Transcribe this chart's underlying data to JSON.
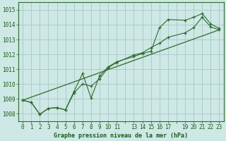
{
  "background_color": "#cee8e5",
  "grid_color": "#b0d4d0",
  "line_color": "#2d6a2d",
  "tick_color": "#1a5c1a",
  "xlabel": "Graphe pression niveau de la mer (hPa)",
  "xlim": [
    -0.5,
    23.5
  ],
  "ylim": [
    1007.5,
    1015.5
  ],
  "yticks": [
    1008,
    1009,
    1010,
    1011,
    1012,
    1013,
    1014,
    1015
  ],
  "xtick_positions": [
    0,
    1,
    2,
    3,
    4,
    5,
    6,
    7,
    8,
    9,
    10,
    11,
    12,
    13,
    14,
    15,
    16,
    17,
    18,
    19,
    20,
    21,
    22,
    23
  ],
  "xtick_labels": [
    "0",
    "1",
    "2",
    "3",
    "4",
    "5",
    "6",
    "7",
    "8",
    "9",
    "10",
    "11",
    "",
    "13",
    "14",
    "15",
    "16",
    "17",
    "",
    "19",
    "20",
    "21",
    "22",
    "23"
  ],
  "series1": [
    [
      0,
      1008.9
    ],
    [
      1,
      1008.75
    ],
    [
      2,
      1007.95
    ],
    [
      3,
      1008.35
    ],
    [
      4,
      1008.4
    ],
    [
      5,
      1008.25
    ],
    [
      6,
      1009.5
    ],
    [
      7,
      1010.7
    ],
    [
      8,
      1009.05
    ],
    [
      9,
      1010.55
    ],
    [
      10,
      1011.15
    ],
    [
      11,
      1011.5
    ],
    [
      13,
      1011.85
    ],
    [
      14,
      1012.05
    ],
    [
      15,
      1012.2
    ],
    [
      16,
      1013.8
    ],
    [
      17,
      1014.35
    ],
    [
      19,
      1014.3
    ],
    [
      20,
      1014.5
    ],
    [
      21,
      1014.75
    ],
    [
      22,
      1014.05
    ],
    [
      23,
      1013.75
    ]
  ],
  "series2": [
    [
      0,
      1008.9
    ],
    [
      1,
      1008.75
    ],
    [
      2,
      1007.95
    ],
    [
      3,
      1008.35
    ],
    [
      4,
      1008.4
    ],
    [
      5,
      1008.25
    ],
    [
      6,
      1009.4
    ],
    [
      7,
      1010.0
    ],
    [
      8,
      1009.85
    ],
    [
      9,
      1010.35
    ],
    [
      10,
      1011.1
    ],
    [
      11,
      1011.45
    ],
    [
      13,
      1011.95
    ],
    [
      14,
      1012.1
    ],
    [
      15,
      1012.45
    ],
    [
      16,
      1012.75
    ],
    [
      17,
      1013.15
    ],
    [
      19,
      1013.45
    ],
    [
      20,
      1013.8
    ],
    [
      21,
      1014.5
    ],
    [
      22,
      1013.85
    ],
    [
      23,
      1013.65
    ]
  ],
  "series3": [
    [
      0,
      1008.9
    ],
    [
      23,
      1013.65
    ]
  ]
}
